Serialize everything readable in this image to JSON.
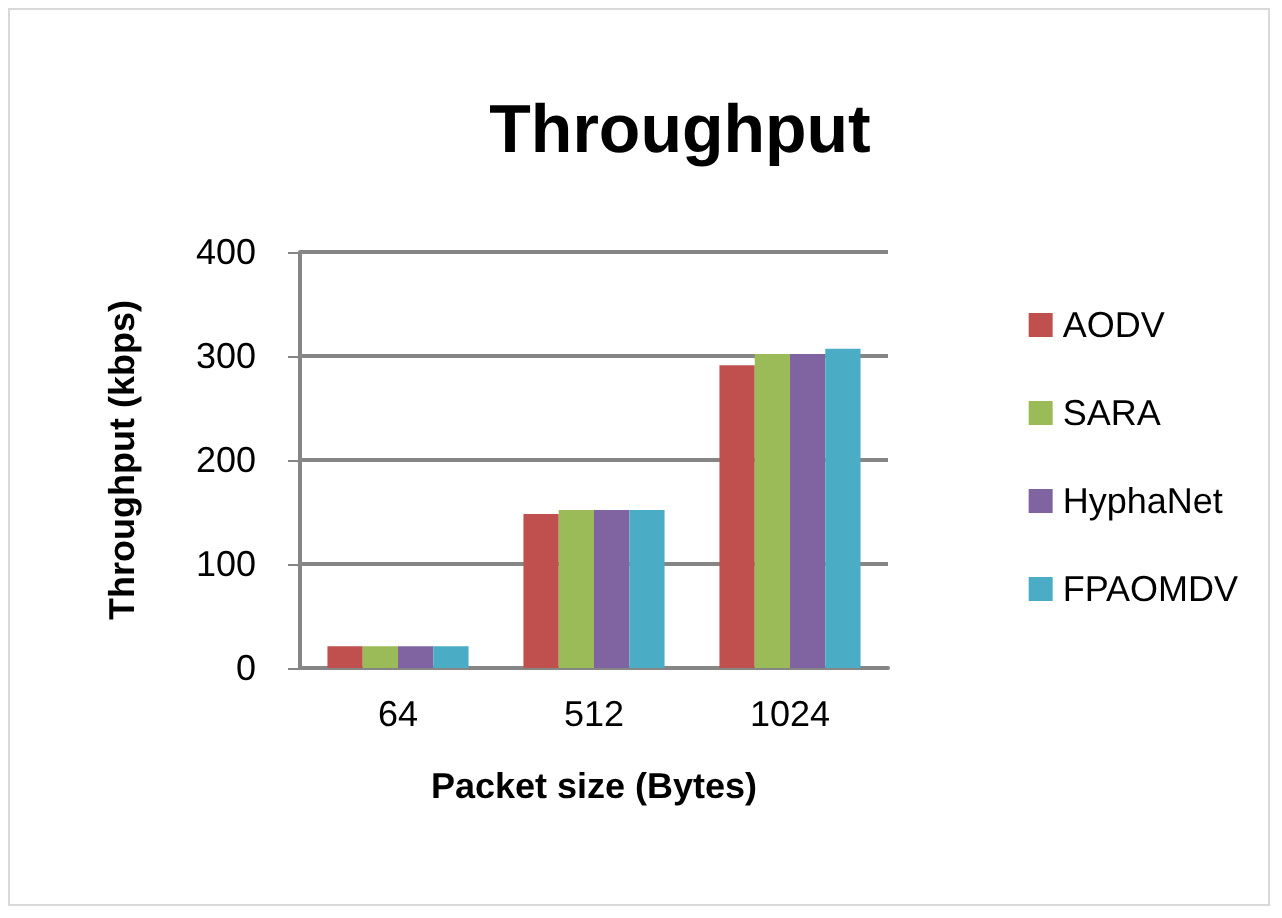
{
  "chart_data": {
    "type": "bar",
    "title": "Throughput",
    "xlabel": "Packet size (Bytes)",
    "ylabel": "Throughput (kbps)",
    "categories": [
      "64",
      "512",
      "1024"
    ],
    "series": [
      {
        "name": "AODV",
        "color": "#c0504d",
        "values": [
          21,
          148,
          291
        ]
      },
      {
        "name": "SARA",
        "color": "#9bbb59",
        "values": [
          21,
          152,
          302
        ]
      },
      {
        "name": "HyphaNet",
        "color": "#8064a2",
        "values": [
          21,
          152,
          302
        ]
      },
      {
        "name": "FPAOMDV",
        "color": "#4bacc6",
        "values": [
          21,
          152,
          307
        ]
      }
    ],
    "ylim": [
      0,
      400
    ],
    "yticks": [
      0,
      100,
      200,
      300,
      400
    ],
    "grid": "y",
    "legend": "right"
  }
}
